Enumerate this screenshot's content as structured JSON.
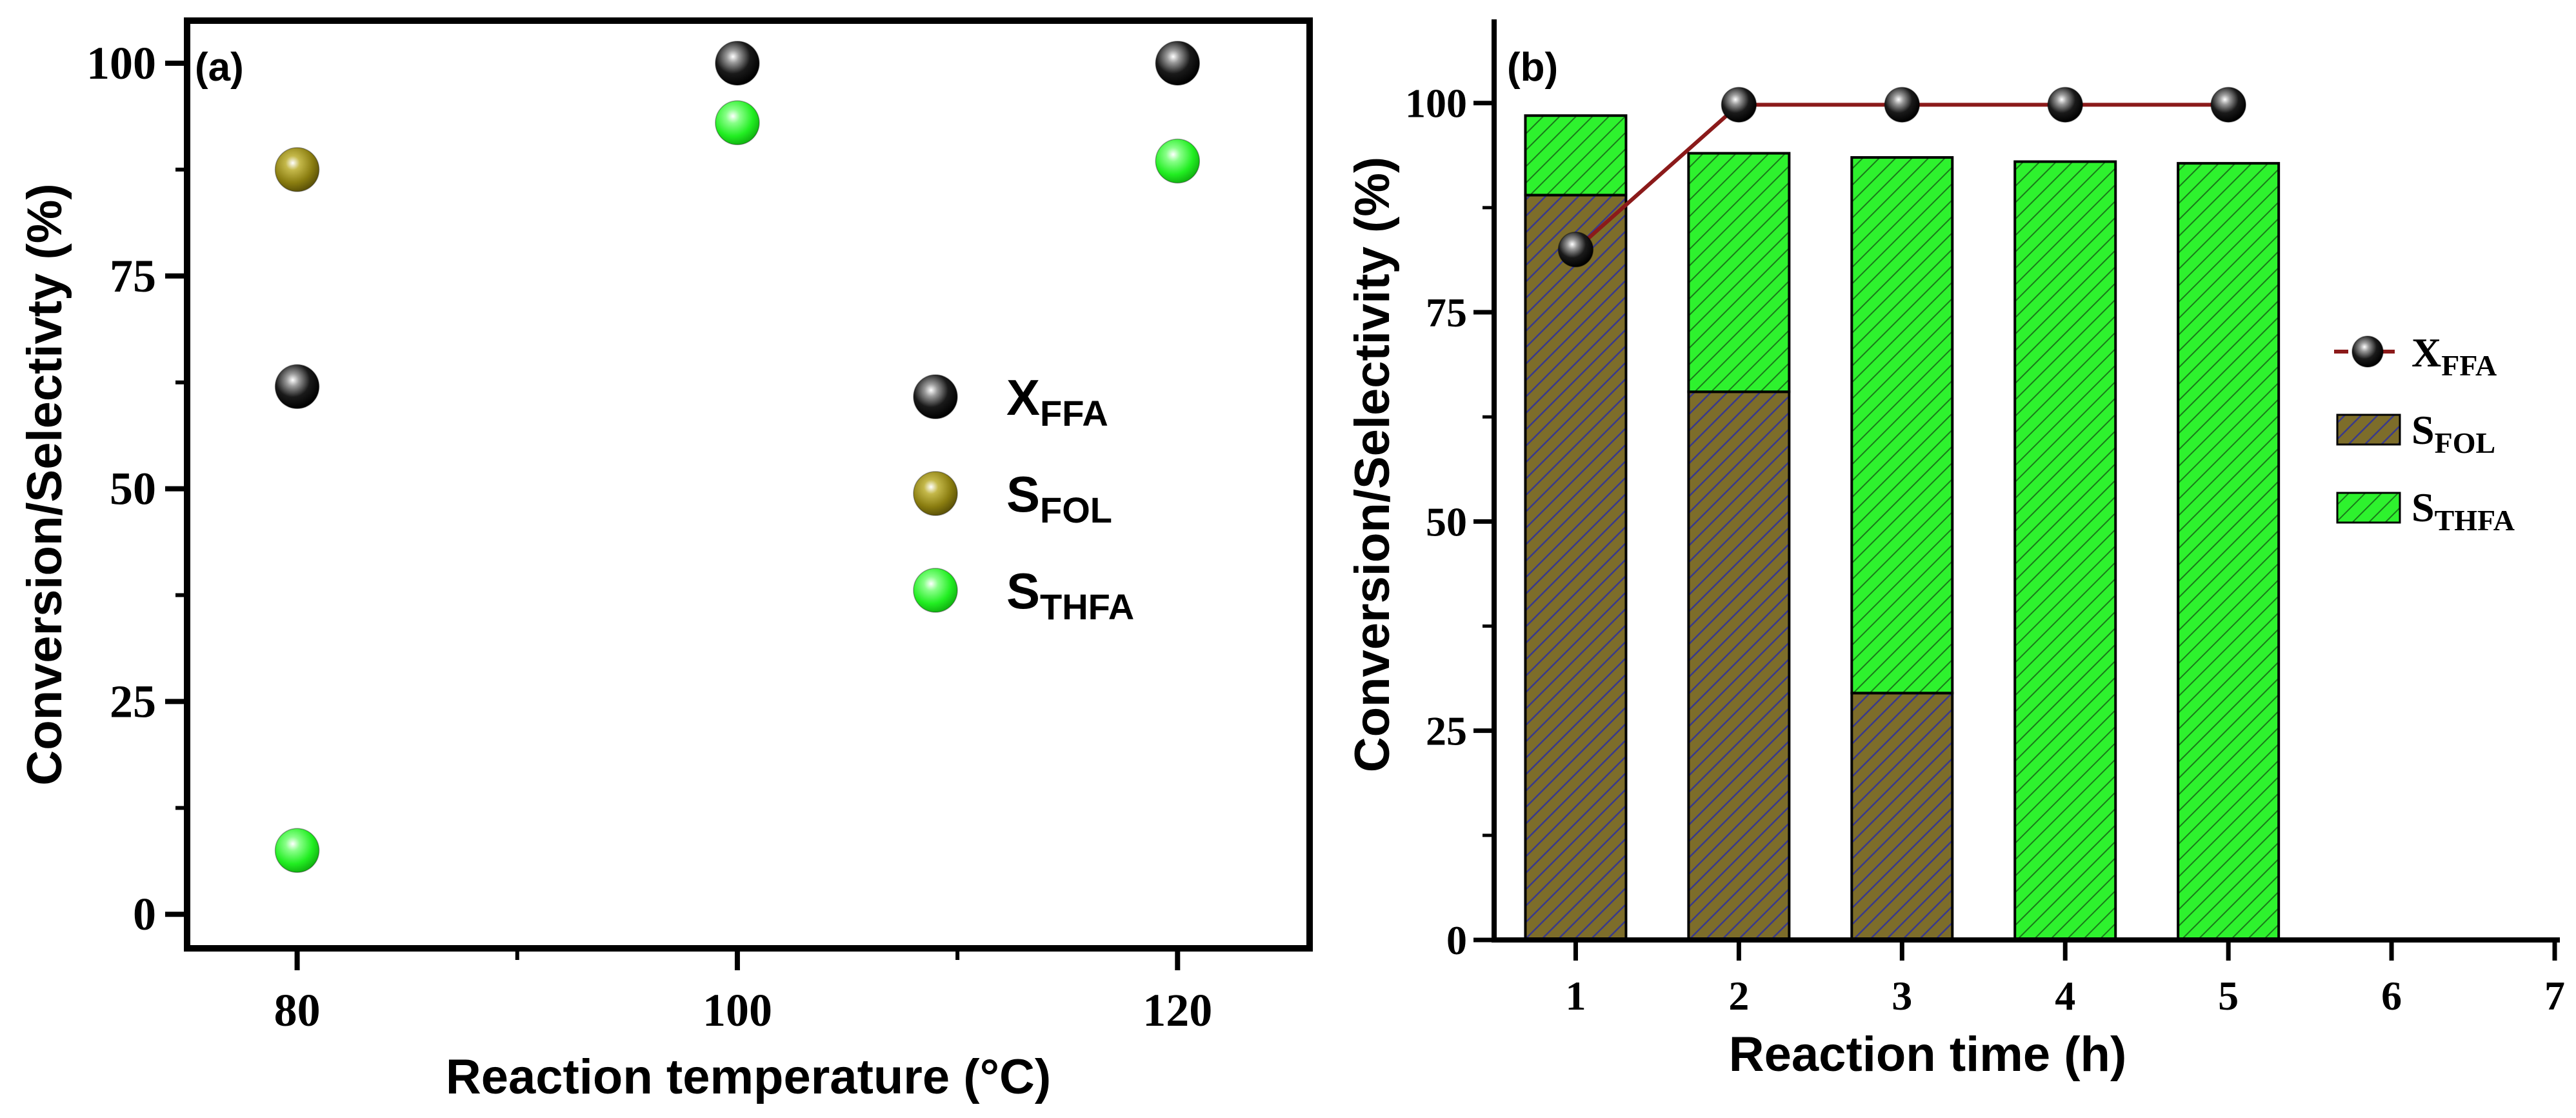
{
  "colors": {
    "axis": "#000000",
    "x_ffa_marker": "#111111",
    "s_fol_marker": "#8a7d10",
    "s_thfa_marker": "#22ee22",
    "s_fol_bar": "#7d6d2a",
    "s_fol_hatch": "#3a3a8a",
    "s_thfa_bar": "#2ef22e",
    "s_thfa_hatch": "#1a7a1a",
    "x_ffa_line": "#8b1a1a"
  },
  "chart_data": [
    {
      "panel_label": "(a)",
      "type": "scatter",
      "xlabel": "Reaction temperature (°C)",
      "ylabel": "Conversion/Selectivty (%)",
      "xlim": [
        75,
        126
      ],
      "ylim": [
        -4,
        105
      ],
      "xticks": [
        80,
        100,
        120
      ],
      "xtick_labels": [
        "80",
        "100",
        "120"
      ],
      "yticks": [
        0,
        25,
        50,
        75,
        100
      ],
      "ytick_labels": [
        "0",
        "25",
        "50",
        "75",
        "100"
      ],
      "legend_position": "center-right",
      "series": [
        {
          "key": "x_ffa",
          "name_main": "X",
          "name_sub": "FFA",
          "x": [
            80,
            100,
            120
          ],
          "y": [
            62,
            100,
            100
          ]
        },
        {
          "key": "s_fol",
          "name_main": "S",
          "name_sub": "FOL",
          "x": [
            80
          ],
          "y": [
            87.5
          ]
        },
        {
          "key": "s_thfa",
          "name_main": "S",
          "name_sub": "THFA",
          "x": [
            80,
            100,
            120
          ],
          "y": [
            7.5,
            93,
            88.5
          ]
        }
      ]
    },
    {
      "panel_label": "(b)",
      "type": "bar",
      "xlabel": "Reaction time (h)",
      "ylabel": "Conversion/Selectivity (%)",
      "xlim": [
        0.5,
        7
      ],
      "ylim": [
        0,
        110
      ],
      "xticks": [
        1,
        2,
        3,
        4,
        5,
        6,
        7
      ],
      "xtick_labels": [
        "1",
        "2",
        "3",
        "4",
        "5",
        "6",
        "7"
      ],
      "yticks": [
        0,
        25,
        50,
        75,
        100
      ],
      "ytick_labels": [
        "0",
        "25",
        "50",
        "75",
        "100"
      ],
      "legend_position": "center-right",
      "categories": [
        1,
        2,
        3,
        4,
        5
      ],
      "series": [
        {
          "key": "x_ffa",
          "kind": "line",
          "name_main": "X",
          "name_sub": "FFA",
          "x": [
            1,
            2,
            3,
            4,
            5
          ],
          "y": [
            82.5,
            99.8,
            99.8,
            99.8,
            99.8
          ]
        },
        {
          "key": "s_fol",
          "kind": "bar",
          "name_main": "S",
          "name_sub": "FOL",
          "values": [
            89,
            65.5,
            29.5,
            0,
            0
          ]
        },
        {
          "key": "s_thfa",
          "kind": "bar",
          "name_main": "S",
          "name_sub": "THFA",
          "values": [
            9.5,
            28.5,
            64,
            93,
            92.8
          ]
        }
      ]
    }
  ]
}
